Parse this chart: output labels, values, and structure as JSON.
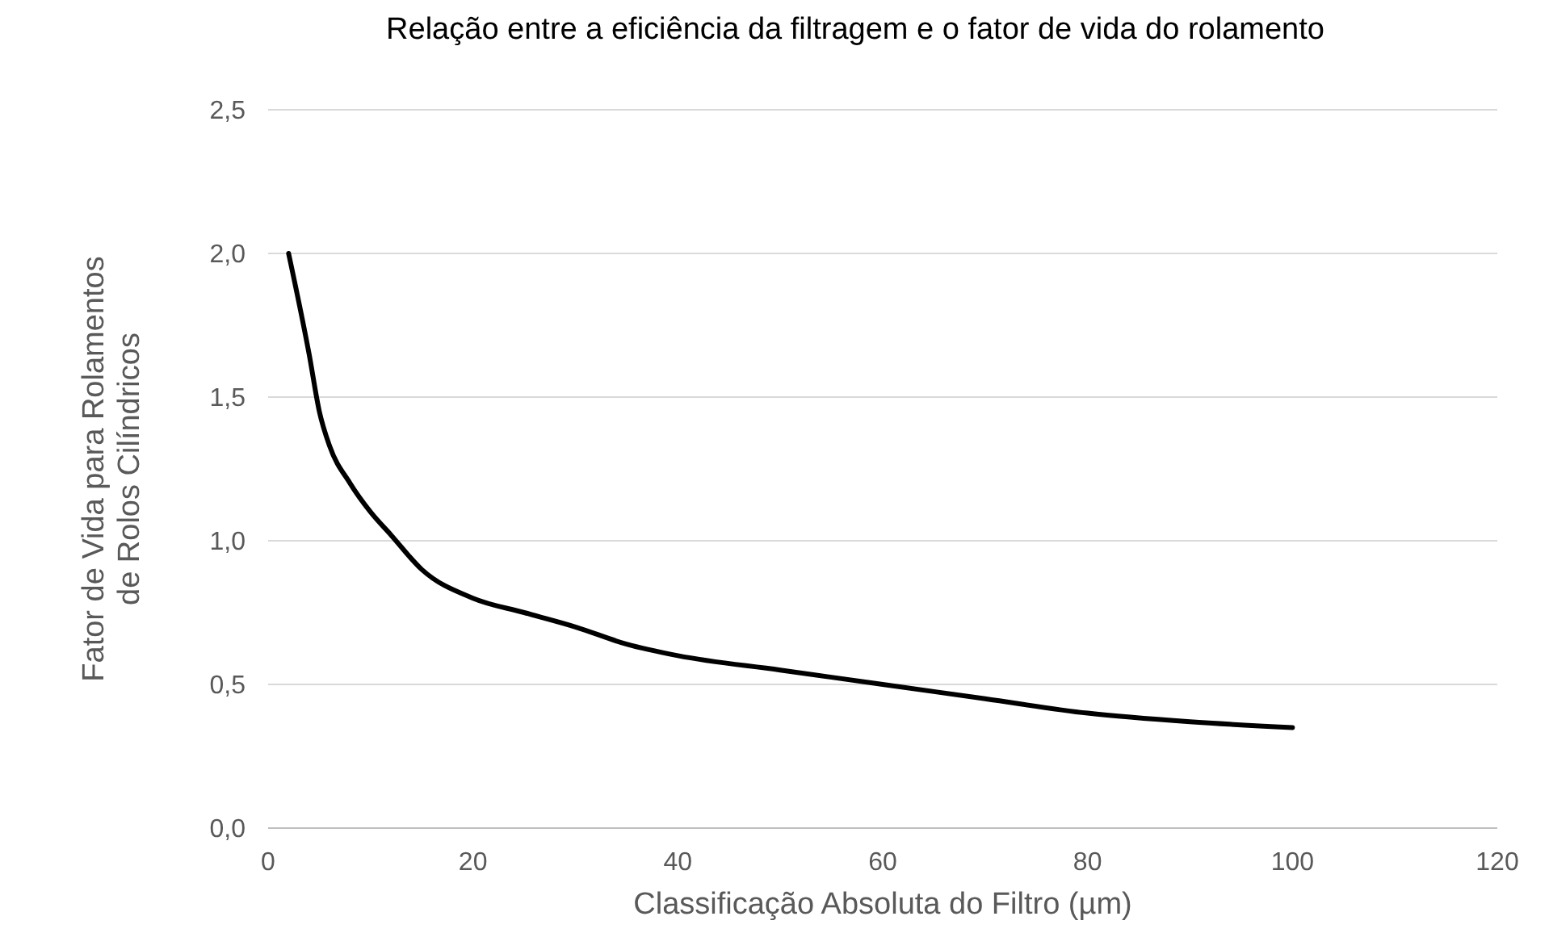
{
  "chart_data": {
    "type": "line",
    "title": "Relação entre a eficiência da filtragem e o fator de vida do rolamento",
    "xlabel": "Classificação Absoluta do Filtro (µm)",
    "ylabel": "Fator de Vida para Rolamentos de Rolos Cilíndricos",
    "x": [
      2,
      4,
      5,
      6,
      8,
      10,
      12,
      15,
      20,
      25,
      30,
      35,
      40,
      50,
      60,
      70,
      80,
      90,
      100
    ],
    "series": [
      {
        "color": "#000000",
        "values": [
          2.0,
          1.65,
          1.45,
          1.33,
          1.2,
          1.1,
          1.02,
          0.9,
          0.8,
          0.75,
          0.7,
          0.64,
          0.6,
          0.55,
          0.5,
          0.45,
          0.4,
          0.37,
          0.35
        ]
      }
    ],
    "xlim": [
      0,
      120
    ],
    "xticks": [
      0,
      20,
      40,
      60,
      80,
      100,
      120
    ],
    "ylim": [
      0,
      2.5
    ],
    "yticks": [
      {
        "value": 0,
        "label": "0,0"
      },
      {
        "value": 0.5,
        "label": "0,5"
      },
      {
        "value": 1,
        "label": "1,0"
      },
      {
        "value": 1.5,
        "label": "1,5"
      },
      {
        "value": 2,
        "label": "2,0"
      },
      {
        "value": 2.5,
        "label": "2,5"
      }
    ],
    "grid": "y",
    "marker": "none",
    "line_style": "solid"
  }
}
